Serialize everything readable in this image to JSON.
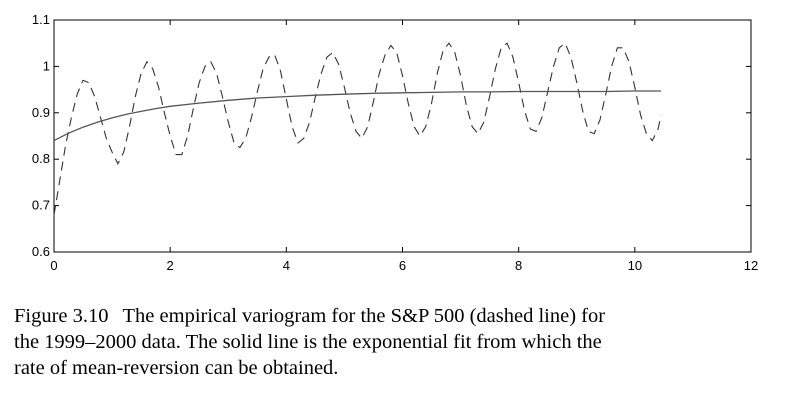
{
  "chart_data": {
    "type": "line",
    "title": "",
    "xlabel": "",
    "ylabel": "",
    "xlim": [
      0,
      12
    ],
    "ylim": [
      0.6,
      1.1
    ],
    "x_ticks": [
      0,
      2,
      4,
      6,
      8,
      10,
      12
    ],
    "x_tick_labels": [
      "0",
      "2",
      "4",
      "6",
      "8",
      "10",
      "12"
    ],
    "y_ticks": [
      0.6,
      0.7,
      0.8,
      0.9,
      1.0,
      1.1
    ],
    "y_tick_labels": [
      "0.6",
      "0.7",
      "0.8",
      "0.9",
      "1",
      "1.1"
    ],
    "grid": false,
    "legend": "none",
    "series": [
      {
        "style": "dashed",
        "color": "#333333",
        "x": [
          0.0,
          0.1,
          0.2,
          0.3,
          0.4,
          0.5,
          0.6,
          0.7,
          0.8,
          0.9,
          1.0,
          1.1,
          1.2,
          1.3,
          1.4,
          1.5,
          1.6,
          1.7,
          1.8,
          1.9,
          2.0,
          2.1,
          2.2,
          2.3,
          2.4,
          2.5,
          2.6,
          2.7,
          2.8,
          2.9,
          3.0,
          3.1,
          3.2,
          3.3,
          3.4,
          3.5,
          3.6,
          3.7,
          3.8,
          3.9,
          4.0,
          4.1,
          4.2,
          4.3,
          4.4,
          4.5,
          4.6,
          4.7,
          4.8,
          4.9,
          5.0,
          5.1,
          5.2,
          5.3,
          5.4,
          5.5,
          5.6,
          5.7,
          5.8,
          5.9,
          6.0,
          6.1,
          6.2,
          6.3,
          6.4,
          6.5,
          6.6,
          6.7,
          6.8,
          6.9,
          7.0,
          7.1,
          7.2,
          7.3,
          7.4,
          7.5,
          7.6,
          7.7,
          7.8,
          7.9,
          8.0,
          8.1,
          8.2,
          8.3,
          8.4,
          8.5,
          8.6,
          8.7,
          8.8,
          8.9,
          9.0,
          9.1,
          9.2,
          9.3,
          9.4,
          9.5,
          9.6,
          9.7,
          9.8,
          9.9,
          10.0,
          10.1,
          10.2,
          10.3,
          10.4,
          10.45
        ],
        "y": [
          0.68,
          0.755,
          0.83,
          0.89,
          0.94,
          0.97,
          0.965,
          0.935,
          0.89,
          0.845,
          0.815,
          0.79,
          0.815,
          0.87,
          0.935,
          0.985,
          1.01,
          0.995,
          0.955,
          0.9,
          0.85,
          0.81,
          0.81,
          0.85,
          0.91,
          0.965,
          1.0,
          1.01,
          0.985,
          0.935,
          0.88,
          0.835,
          0.825,
          0.845,
          0.89,
          0.945,
          0.995,
          1.02,
          1.025,
          0.99,
          0.93,
          0.87,
          0.835,
          0.845,
          0.88,
          0.935,
          0.985,
          1.02,
          1.03,
          1.005,
          0.955,
          0.9,
          0.86,
          0.845,
          0.87,
          0.925,
          0.985,
          1.025,
          1.045,
          1.03,
          0.98,
          0.92,
          0.87,
          0.85,
          0.87,
          0.92,
          0.985,
          1.035,
          1.05,
          1.03,
          0.98,
          0.915,
          0.87,
          0.855,
          0.88,
          0.935,
          0.995,
          1.04,
          1.05,
          1.02,
          0.965,
          0.905,
          0.865,
          0.86,
          0.89,
          0.945,
          1.0,
          1.04,
          1.05,
          1.02,
          0.965,
          0.905,
          0.86,
          0.855,
          0.885,
          0.94,
          1.0,
          1.04,
          1.04,
          1.01,
          0.955,
          0.895,
          0.855,
          0.84,
          0.865,
          0.895
        ]
      },
      {
        "style": "solid",
        "color": "#555555",
        "x": [
          0.0,
          0.25,
          0.5,
          0.75,
          1.0,
          1.25,
          1.5,
          1.75,
          2.0,
          2.5,
          3.0,
          3.5,
          4.0,
          4.5,
          5.0,
          5.5,
          6.0,
          6.5,
          7.0,
          7.5,
          8.0,
          8.5,
          9.0,
          9.5,
          10.0,
          10.45
        ],
        "y": [
          0.84,
          0.856,
          0.869,
          0.88,
          0.889,
          0.897,
          0.903,
          0.909,
          0.914,
          0.921,
          0.927,
          0.932,
          0.935,
          0.938,
          0.94,
          0.942,
          0.943,
          0.944,
          0.945,
          0.945,
          0.946,
          0.946,
          0.946,
          0.946,
          0.947,
          0.947
        ]
      }
    ]
  },
  "caption": {
    "label": "Figure 3.10",
    "lines": [
      "The empirical variogram for the S&P 500 (dashed line) for",
      "the 1999–2000 data. The solid line is the exponential fit from which the",
      "rate of mean-reversion can be obtained."
    ]
  }
}
